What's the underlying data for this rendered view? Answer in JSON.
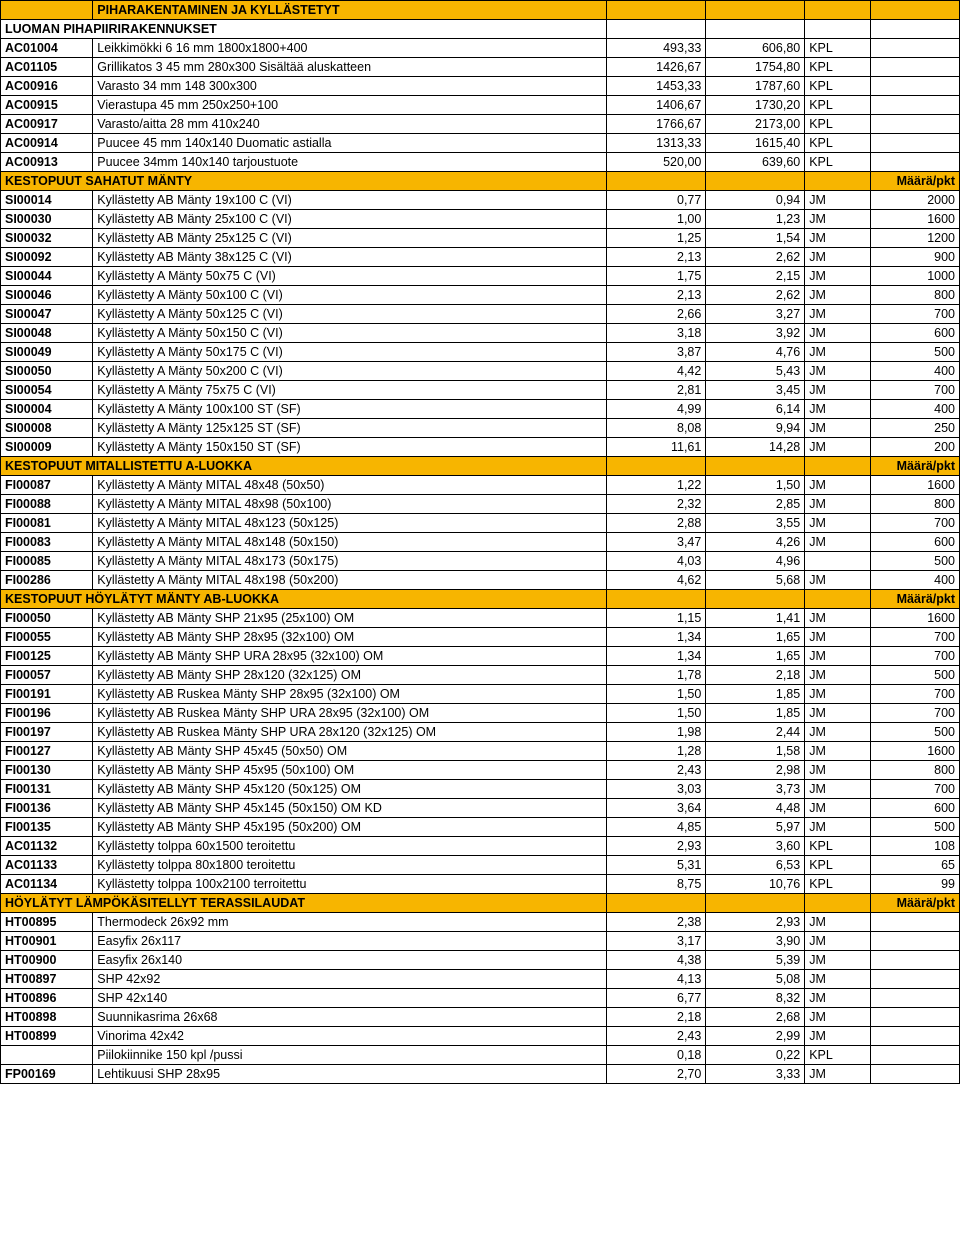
{
  "titleRow": {
    "label": "PIHARAKENTAMINEN JA KYLLÄSTETYT"
  },
  "sections": [
    {
      "type": "subhead",
      "label": "LUOMAN PIHAPIIRIRAKENNUKSET",
      "rows": [
        {
          "code": "AC01004",
          "desc": "Leikkimökki 6 16 mm 1800x1800+400",
          "p1": "493,33",
          "p2": "606,80",
          "unit": "KPL",
          "qty": ""
        },
        {
          "code": "AC01105",
          "desc": "Grillikatos 3 45 mm 280x300 Sisältää aluskatteen",
          "p1": "1426,67",
          "p2": "1754,80",
          "unit": "KPL",
          "qty": ""
        },
        {
          "code": "AC00916",
          "desc": "Varasto 34 mm 148 300x300",
          "p1": "1453,33",
          "p2": "1787,60",
          "unit": "KPL",
          "qty": ""
        },
        {
          "code": "AC00915",
          "desc": "Vierastupa 45 mm 250x250+100",
          "p1": "1406,67",
          "p2": "1730,20",
          "unit": "KPL",
          "qty": ""
        },
        {
          "code": "AC00917",
          "desc": "Varasto/aitta 28 mm 410x240",
          "p1": "1766,67",
          "p2": "2173,00",
          "unit": "KPL",
          "qty": ""
        },
        {
          "code": "AC00914",
          "desc": "Puucee 45 mm 140x140 Duomatic astialla",
          "p1": "1313,33",
          "p2": "1615,40",
          "unit": "KPL",
          "qty": ""
        },
        {
          "code": "AC00913",
          "desc": "Puucee 34mm 140x140 tarjoustuote",
          "p1": "520,00",
          "p2": "639,60",
          "unit": "KPL",
          "qty": ""
        }
      ]
    },
    {
      "type": "header",
      "label": "KESTOPUUT SAHATUT MÄNTY",
      "right": "Määrä/pkt",
      "rows": [
        {
          "code": "SI00014",
          "desc": "Kyllästetty AB Mänty 19x100 C (VI)",
          "p1": "0,77",
          "p2": "0,94",
          "unit": "JM",
          "qty": "2000"
        },
        {
          "code": "SI00030",
          "desc": "Kyllästetty AB Mänty 25x100 C (VI)",
          "p1": "1,00",
          "p2": "1,23",
          "unit": "JM",
          "qty": "1600"
        },
        {
          "code": "SI00032",
          "desc": "Kyllästetty AB Mänty 25x125 C (VI)",
          "p1": "1,25",
          "p2": "1,54",
          "unit": "JM",
          "qty": "1200"
        },
        {
          "code": "SI00092",
          "desc": "Kyllästetty AB Mänty 38x125 C (VI)",
          "p1": "2,13",
          "p2": "2,62",
          "unit": "JM",
          "qty": "900"
        },
        {
          "code": "SI00044",
          "desc": "Kyllästetty A Mänty 50x75 C (VI)",
          "p1": "1,75",
          "p2": "2,15",
          "unit": "JM",
          "qty": "1000"
        },
        {
          "code": "SI00046",
          "desc": "Kyllästetty A Mänty 50x100 C (VI)",
          "p1": "2,13",
          "p2": "2,62",
          "unit": "JM",
          "qty": "800"
        },
        {
          "code": "SI00047",
          "desc": "Kyllästetty A Mänty 50x125 C (VI)",
          "p1": "2,66",
          "p2": "3,27",
          "unit": "JM",
          "qty": "700"
        },
        {
          "code": "SI00048",
          "desc": "Kyllästetty A Mänty 50x150 C (VI)",
          "p1": "3,18",
          "p2": "3,92",
          "unit": "JM",
          "qty": "600"
        },
        {
          "code": "SI00049",
          "desc": "Kyllästetty A Mänty 50x175 C (VI)",
          "p1": "3,87",
          "p2": "4,76",
          "unit": "JM",
          "qty": "500"
        },
        {
          "code": "SI00050",
          "desc": "Kyllästetty A Mänty 50x200 C (VI)",
          "p1": "4,42",
          "p2": "5,43",
          "unit": "JM",
          "qty": "400"
        },
        {
          "code": "SI00054",
          "desc": "Kyllästetty A Mänty 75x75 C (VI)",
          "p1": "2,81",
          "p2": "3,45",
          "unit": "JM",
          "qty": "700"
        },
        {
          "code": "SI00004",
          "desc": "Kyllästetty A Mänty 100x100 ST (SF)",
          "p1": "4,99",
          "p2": "6,14",
          "unit": "JM",
          "qty": "400"
        },
        {
          "code": "SI00008",
          "desc": "Kyllästetty A Mänty 125x125 ST (SF)",
          "p1": "8,08",
          "p2": "9,94",
          "unit": "JM",
          "qty": "250"
        },
        {
          "code": "SI00009",
          "desc": "Kyllästetty A Mänty 150x150 ST (SF)",
          "p1": "11,61",
          "p2": "14,28",
          "unit": "JM",
          "qty": "200"
        }
      ]
    },
    {
      "type": "header",
      "label": "KESTOPUUT MITALLISTETTU A-LUOKKA",
      "right": "Määrä/pkt",
      "rows": [
        {
          "code": "FI00087",
          "desc": "Kyllästetty A Mänty MITAL 48x48 (50x50)",
          "p1": "1,22",
          "p2": "1,50",
          "unit": "JM",
          "qty": "1600"
        },
        {
          "code": "FI00088",
          "desc": "Kyllästetty A Mänty MITAL 48x98 (50x100)",
          "p1": "2,32",
          "p2": "2,85",
          "unit": "JM",
          "qty": "800"
        },
        {
          "code": "FI00081",
          "desc": "Kyllästetty A Mänty MITAL 48x123 (50x125)",
          "p1": "2,88",
          "p2": "3,55",
          "unit": "JM",
          "qty": "700"
        },
        {
          "code": "FI00083",
          "desc": "Kyllästetty A Mänty MITAL 48x148 (50x150)",
          "p1": "3,47",
          "p2": "4,26",
          "unit": "JM",
          "qty": "600"
        },
        {
          "code": "FI00085",
          "desc": "Kyllästetty A Mänty MITAL 48x173 (50x175)",
          "p1": "4,03",
          "p2": "4,96",
          "unit": "",
          "qty": "500"
        },
        {
          "code": "FI00286",
          "desc": "Kyllästetty A Mänty MITAL 48x198 (50x200)",
          "p1": "4,62",
          "p2": "5,68",
          "unit": "JM",
          "qty": "400"
        }
      ]
    },
    {
      "type": "header",
      "label": "KESTOPUUT HÖYLÄTYT MÄNTY AB-LUOKKA",
      "right": "Määrä/pkt",
      "rows": [
        {
          "code": "FI00050",
          "desc": "Kyllästetty AB Mänty SHP 21x95 (25x100) OM",
          "p1": "1,15",
          "p2": "1,41",
          "unit": "JM",
          "qty": "1600"
        },
        {
          "code": "FI00055",
          "desc": "Kyllästetty AB Mänty SHP 28x95 (32x100) OM",
          "p1": "1,34",
          "p2": "1,65",
          "unit": "JM",
          "qty": "700"
        },
        {
          "code": "FI00125",
          "desc": "Kyllästetty AB Mänty SHP URA 28x95 (32x100) OM",
          "p1": "1,34",
          "p2": "1,65",
          "unit": "JM",
          "qty": "700"
        },
        {
          "code": "FI00057",
          "desc": "Kyllästetty AB Mänty SHP 28x120 (32x125) OM",
          "p1": "1,78",
          "p2": "2,18",
          "unit": "JM",
          "qty": "500"
        },
        {
          "code": "FI00191",
          "desc": "Kyllästetty AB Ruskea Mänty SHP 28x95 (32x100) OM",
          "p1": "1,50",
          "p2": "1,85",
          "unit": "JM",
          "qty": "700"
        },
        {
          "code": "FI00196",
          "desc": "Kyllästetty AB Ruskea Mänty SHP URA 28x95 (32x100) OM",
          "p1": "1,50",
          "p2": "1,85",
          "unit": "JM",
          "qty": "700"
        },
        {
          "code": "FI00197",
          "desc": "Kyllästetty AB Ruskea Mänty SHP URA 28x120 (32x125) OM",
          "p1": "1,98",
          "p2": "2,44",
          "unit": "JM",
          "qty": "500"
        },
        {
          "code": "FI00127",
          "desc": "Kyllästetty AB Mänty SHP 45x45 (50x50) OM",
          "p1": "1,28",
          "p2": "1,58",
          "unit": "JM",
          "qty": "1600"
        },
        {
          "code": "FI00130",
          "desc": "Kyllästetty AB Mänty SHP 45x95 (50x100) OM",
          "p1": "2,43",
          "p2": "2,98",
          "unit": "JM",
          "qty": "800"
        },
        {
          "code": "FI00131",
          "desc": "Kyllästetty AB Mänty SHP 45x120 (50x125) OM",
          "p1": "3,03",
          "p2": "3,73",
          "unit": "JM",
          "qty": "700"
        },
        {
          "code": "FI00136",
          "desc": "Kyllästetty AB Mänty SHP 45x145 (50x150) OM KD",
          "p1": "3,64",
          "p2": "4,48",
          "unit": "JM",
          "qty": "600"
        },
        {
          "code": "FI00135",
          "desc": "Kyllästetty AB Mänty SHP 45x195 (50x200) OM",
          "p1": "4,85",
          "p2": "5,97",
          "unit": "JM",
          "qty": "500"
        },
        {
          "code": "AC01132",
          "desc": "Kyllästetty tolppa 60x1500 teroitettu",
          "p1": "2,93",
          "p2": "3,60",
          "unit": "KPL",
          "qty": "108"
        },
        {
          "code": "AC01133",
          "desc": "Kyllästetty tolppa 80x1800 teroitettu",
          "p1": "5,31",
          "p2": "6,53",
          "unit": "KPL",
          "qty": "65"
        },
        {
          "code": "AC01134",
          "desc": "Kyllästetty tolppa 100x2100 terroitettu",
          "p1": "8,75",
          "p2": "10,76",
          "unit": "KPL",
          "qty": "99"
        }
      ]
    },
    {
      "type": "header",
      "label": "HÖYLÄTYT LÄMPÖKÄSITELLYT TERASSILAUDAT",
      "right": "Määrä/pkt",
      "rows": [
        {
          "code": "HT00895",
          "desc": "Thermodeck 26x92 mm",
          "p1": "2,38",
          "p2": "2,93",
          "unit": "JM",
          "qty": ""
        },
        {
          "code": "HT00901",
          "desc": "Easyfix 26x117",
          "p1": "3,17",
          "p2": "3,90",
          "unit": "JM",
          "qty": ""
        },
        {
          "code": "HT00900",
          "desc": "Easyfix 26x140",
          "p1": "4,38",
          "p2": "5,39",
          "unit": "JM",
          "qty": ""
        },
        {
          "code": "HT00897",
          "desc": "SHP 42x92",
          "p1": "4,13",
          "p2": "5,08",
          "unit": "JM",
          "qty": ""
        },
        {
          "code": "HT00896",
          "desc": "SHP 42x140",
          "p1": "6,77",
          "p2": "8,32",
          "unit": "JM",
          "qty": ""
        },
        {
          "code": "HT00898",
          "desc": "Suunnikasrima 26x68",
          "p1": "2,18",
          "p2": "2,68",
          "unit": "JM",
          "qty": ""
        },
        {
          "code": "HT00899",
          "desc": "Vinorima 42x42",
          "p1": "2,43",
          "p2": "2,99",
          "unit": "JM",
          "qty": ""
        },
        {
          "code": "",
          "desc": "Piilokiinnike 150 kpl /pussi",
          "p1": "0,18",
          "p2": "0,22",
          "unit": "KPL",
          "qty": ""
        },
        {
          "code": "FP00169",
          "desc": "Lehtikuusi SHP 28x95",
          "p1": "2,70",
          "p2": "3,33",
          "unit": "JM",
          "qty": ""
        }
      ]
    }
  ],
  "style": {
    "headerBg": "#f7b500",
    "borderColor": "#000000",
    "fontSize": 12.5,
    "colWidths": {
      "code": 70,
      "desc": 390,
      "p1": 75,
      "p2": 75,
      "unit": 50,
      "qty": 60
    }
  }
}
